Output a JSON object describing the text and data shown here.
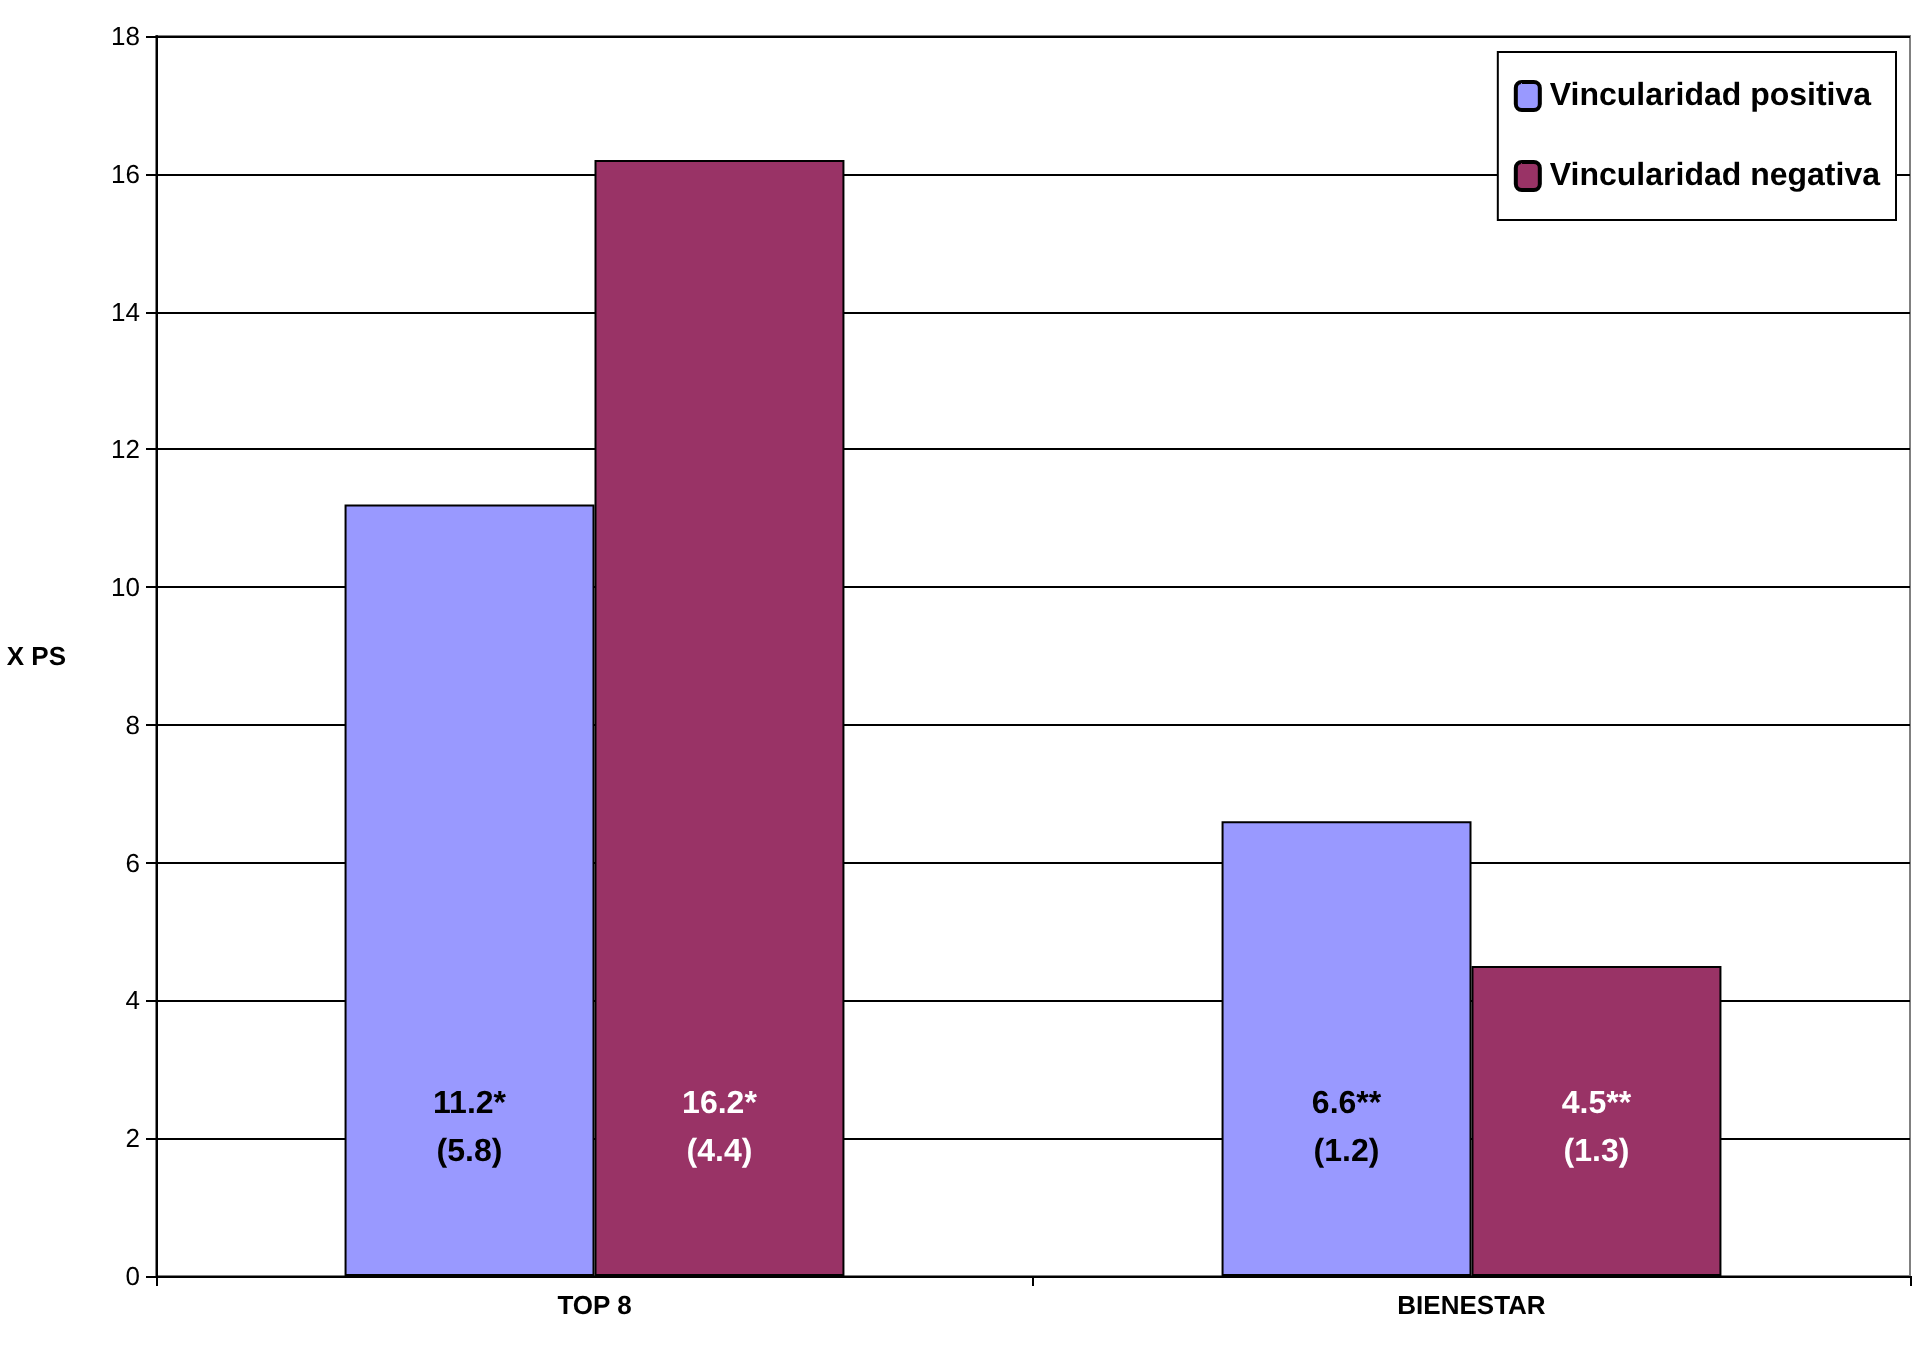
{
  "chart_data": {
    "type": "bar",
    "ylabel": "X PS",
    "categories": [
      "TOP 8",
      "BIENESTAR"
    ],
    "series": [
      {
        "name": "Vincularidad positiva",
        "color": "#9999ff",
        "values": [
          11.2,
          6.6
        ],
        "value_labels": [
          "11.2*\n(5.8)",
          "6.6**\n(1.2)"
        ]
      },
      {
        "name": "Vincularidad negativa",
        "color": "#993366",
        "values": [
          16.2,
          4.5
        ],
        "value_labels": [
          "16.2*\n(4.4)",
          "4.5**\n(1.3)"
        ]
      }
    ],
    "ylim": [
      0,
      18
    ],
    "yticks": [
      0,
      2,
      4,
      6,
      8,
      10,
      12,
      14,
      16,
      18
    ],
    "grid": "y",
    "legend": "top right"
  }
}
